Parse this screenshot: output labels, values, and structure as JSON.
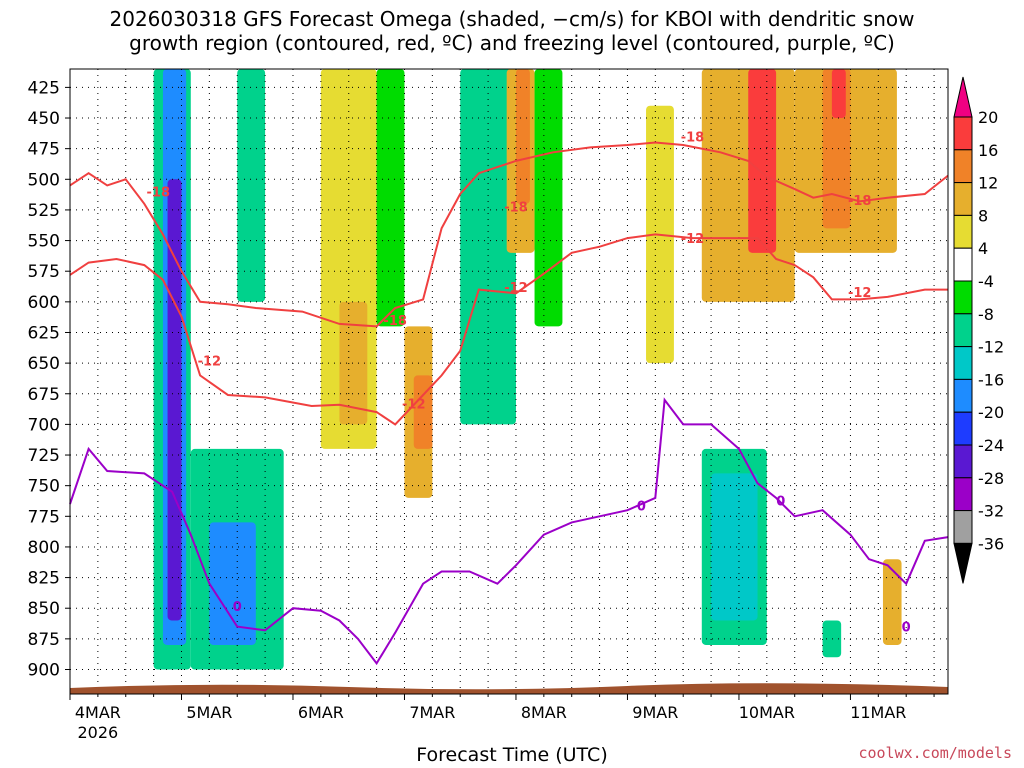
{
  "title_line1": "2026030318 GFS Forecast Omega (shaded, −cm/s) for KBOI with dendritic snow",
  "title_line2": "growth region (contoured, red, ºC) and freezing level (contoured, purple, ºC)",
  "credit": "coolwx.com/models",
  "colors": {
    "omega_scale": [
      "#000000",
      "#a0a0a0",
      "#9b00c8",
      "#5a18d2",
      "#1e3cff",
      "#1e8cff",
      "#00c8c8",
      "#00d28c",
      "#00dc00",
      "#ffffff",
      "#e6dc32",
      "#e6af2d",
      "#f08228",
      "#fa3c3c",
      "#f00082"
    ],
    "dgz_contour": "#f04040",
    "freezing_contour": "#9b00c8",
    "ground": "#a0522d"
  },
  "chart_data": {
    "type": "heatmap",
    "xlabel": "Forecast Time (UTC)",
    "ylabel": "",
    "x_ticks": [
      "4MAR",
      "5MAR",
      "6MAR",
      "7MAR",
      "8MAR",
      "9MAR",
      "10MAR",
      "11MAR"
    ],
    "x_year_label": "2026",
    "y_ticks": [
      425,
      450,
      475,
      500,
      525,
      550,
      575,
      600,
      625,
      650,
      675,
      700,
      725,
      750,
      775,
      800,
      825,
      850,
      875,
      900
    ],
    "ylim_mb": [
      410,
      920
    ],
    "xlim_hours": [
      0,
      189
    ],
    "colorbar_levels": [
      20,
      16,
      12,
      8,
      4,
      -4,
      -8,
      -12,
      -16,
      -20,
      -24,
      -28,
      -32,
      -36
    ],
    "shaded_regions": [
      {
        "x_start_h": 18,
        "x_end_h": 26,
        "p_top": 410,
        "p_bot": 900,
        "value": -8
      },
      {
        "x_start_h": 20,
        "x_end_h": 25,
        "p_top": 410,
        "p_bot": 880,
        "value": -16
      },
      {
        "x_start_h": 21,
        "x_end_h": 24,
        "p_top": 500,
        "p_bot": 860,
        "value": -24
      },
      {
        "x_start_h": 26,
        "x_end_h": 46,
        "p_top": 720,
        "p_bot": 900,
        "value": -8
      },
      {
        "x_start_h": 30,
        "x_end_h": 40,
        "p_top": 780,
        "p_bot": 880,
        "value": -16
      },
      {
        "x_start_h": 36,
        "x_end_h": 42,
        "p_top": 410,
        "p_bot": 600,
        "value": -8
      },
      {
        "x_start_h": 54,
        "x_end_h": 66,
        "p_top": 410,
        "p_bot": 720,
        "value": 4
      },
      {
        "x_start_h": 58,
        "x_end_h": 64,
        "p_top": 600,
        "p_bot": 700,
        "value": 8
      },
      {
        "x_start_h": 66,
        "x_end_h": 72,
        "p_top": 410,
        "p_bot": 620,
        "value": -4
      },
      {
        "x_start_h": 72,
        "x_end_h": 78,
        "p_top": 620,
        "p_bot": 760,
        "value": 8
      },
      {
        "x_start_h": 74,
        "x_end_h": 78,
        "p_top": 660,
        "p_bot": 720,
        "value": 12
      },
      {
        "x_start_h": 84,
        "x_end_h": 96,
        "p_top": 410,
        "p_bot": 700,
        "value": -8
      },
      {
        "x_start_h": 94,
        "x_end_h": 100,
        "p_top": 410,
        "p_bot": 560,
        "value": 8
      },
      {
        "x_start_h": 96,
        "x_end_h": 99,
        "p_top": 410,
        "p_bot": 520,
        "value": 12
      },
      {
        "x_start_h": 100,
        "x_end_h": 106,
        "p_top": 410,
        "p_bot": 620,
        "value": -4
      },
      {
        "x_start_h": 124,
        "x_end_h": 130,
        "p_top": 440,
        "p_bot": 650,
        "value": 4
      },
      {
        "x_start_h": 136,
        "x_end_h": 156,
        "p_top": 410,
        "p_bot": 600,
        "value": 8
      },
      {
        "x_start_h": 146,
        "x_end_h": 152,
        "p_top": 410,
        "p_bot": 560,
        "value": 16
      },
      {
        "x_start_h": 156,
        "x_end_h": 178,
        "p_top": 410,
        "p_bot": 560,
        "value": 8
      },
      {
        "x_start_h": 162,
        "x_end_h": 168,
        "p_top": 410,
        "p_bot": 540,
        "value": 12
      },
      {
        "x_start_h": 164,
        "x_end_h": 167,
        "p_top": 410,
        "p_bot": 450,
        "value": 16
      },
      {
        "x_start_h": 136,
        "x_end_h": 150,
        "p_top": 720,
        "p_bot": 880,
        "value": -8
      },
      {
        "x_start_h": 138,
        "x_end_h": 148,
        "p_top": 740,
        "p_bot": 860,
        "value": -12
      },
      {
        "x_start_h": 162,
        "x_end_h": 166,
        "p_top": 860,
        "p_bot": 890,
        "value": -8
      },
      {
        "x_start_h": 175,
        "x_end_h": 179,
        "p_top": 810,
        "p_bot": 880,
        "value": 8
      }
    ],
    "contours": [
      {
        "label": "-18",
        "color": "dgz",
        "points": [
          [
            0,
            505
          ],
          [
            4,
            495
          ],
          [
            8,
            505
          ],
          [
            12,
            500
          ],
          [
            16,
            520
          ],
          [
            20,
            545
          ],
          [
            24,
            575
          ],
          [
            28,
            600
          ],
          [
            34,
            602
          ],
          [
            40,
            605
          ],
          [
            50,
            608
          ],
          [
            58,
            618
          ],
          [
            66,
            620
          ],
          [
            70,
            605
          ],
          [
            76,
            598
          ],
          [
            80,
            540
          ],
          [
            84,
            512
          ],
          [
            88,
            495
          ],
          [
            96,
            485
          ],
          [
            104,
            478
          ],
          [
            112,
            474
          ],
          [
            120,
            472
          ],
          [
            126,
            470
          ],
          [
            132,
            472
          ],
          [
            140,
            478
          ],
          [
            146,
            485
          ],
          [
            150,
            498
          ],
          [
            156,
            508
          ],
          [
            160,
            515
          ],
          [
            164,
            512
          ],
          [
            170,
            518
          ],
          [
            176,
            515
          ],
          [
            184,
            512
          ],
          [
            189,
            497
          ]
        ]
      },
      {
        "label": "-12",
        "color": "dgz",
        "points": [
          [
            0,
            578
          ],
          [
            4,
            568
          ],
          [
            10,
            565
          ],
          [
            16,
            570
          ],
          [
            20,
            582
          ],
          [
            24,
            612
          ],
          [
            28,
            660
          ],
          [
            34,
            676
          ],
          [
            42,
            678
          ],
          [
            52,
            685
          ],
          [
            58,
            684
          ],
          [
            66,
            690
          ],
          [
            70,
            700
          ],
          [
            76,
            676
          ],
          [
            80,
            660
          ],
          [
            84,
            640
          ],
          [
            88,
            590
          ],
          [
            96,
            593
          ],
          [
            102,
            577
          ],
          [
            108,
            560
          ],
          [
            114,
            555
          ],
          [
            120,
            548
          ],
          [
            126,
            545
          ],
          [
            134,
            548
          ],
          [
            144,
            548
          ],
          [
            148,
            548
          ],
          [
            152,
            565
          ],
          [
            156,
            570
          ],
          [
            160,
            580
          ],
          [
            164,
            598
          ],
          [
            170,
            598
          ],
          [
            176,
            596
          ],
          [
            184,
            590
          ],
          [
            189,
            590
          ]
        ]
      },
      {
        "label": "0",
        "color": "freezing",
        "points": [
          [
            0,
            765
          ],
          [
            4,
            720
          ],
          [
            8,
            738
          ],
          [
            16,
            740
          ],
          [
            22,
            755
          ],
          [
            26,
            790
          ],
          [
            30,
            830
          ],
          [
            36,
            865
          ],
          [
            42,
            868
          ],
          [
            48,
            850
          ],
          [
            54,
            852
          ],
          [
            58,
            860
          ],
          [
            62,
            875
          ],
          [
            66,
            895
          ],
          [
            70,
            870
          ],
          [
            76,
            830
          ],
          [
            80,
            820
          ],
          [
            86,
            820
          ],
          [
            92,
            830
          ],
          [
            96,
            815
          ],
          [
            102,
            790
          ],
          [
            108,
            780
          ],
          [
            114,
            775
          ],
          [
            120,
            770
          ],
          [
            126,
            760
          ],
          [
            128,
            680
          ],
          [
            132,
            700
          ],
          [
            138,
            700
          ],
          [
            144,
            720
          ],
          [
            148,
            748
          ],
          [
            152,
            760
          ],
          [
            156,
            775
          ],
          [
            162,
            770
          ],
          [
            168,
            790
          ],
          [
            172,
            810
          ],
          [
            176,
            815
          ],
          [
            180,
            830
          ],
          [
            184,
            795
          ],
          [
            189,
            792
          ]
        ]
      }
    ],
    "contour_labels": [
      {
        "text": "-18",
        "color": "dgz",
        "x_h": 19,
        "p": 510
      },
      {
        "text": "-12",
        "color": "dgz",
        "x_h": 30,
        "p": 648
      },
      {
        "text": "-18",
        "color": "dgz",
        "x_h": 70,
        "p": 615
      },
      {
        "text": "-12",
        "color": "dgz",
        "x_h": 74,
        "p": 683
      },
      {
        "text": "-18",
        "color": "dgz",
        "x_h": 96,
        "p": 522
      },
      {
        "text": "-12",
        "color": "dgz",
        "x_h": 96,
        "p": 588
      },
      {
        "text": "-18",
        "color": "dgz",
        "x_h": 134,
        "p": 465
      },
      {
        "text": "-12",
        "color": "dgz",
        "x_h": 134,
        "p": 548
      },
      {
        "text": "-18",
        "color": "dgz",
        "x_h": 170,
        "p": 517
      },
      {
        "text": "-12",
        "color": "dgz",
        "x_h": 170,
        "p": 592
      },
      {
        "text": "0",
        "color": "freezing",
        "x_h": 36,
        "p": 848
      },
      {
        "text": "0",
        "color": "freezing",
        "x_h": 123,
        "p": 766
      },
      {
        "text": "0",
        "color": "freezing",
        "x_h": 153,
        "p": 762
      },
      {
        "text": "0",
        "color": "freezing",
        "x_h": 180,
        "p": 865
      }
    ]
  }
}
